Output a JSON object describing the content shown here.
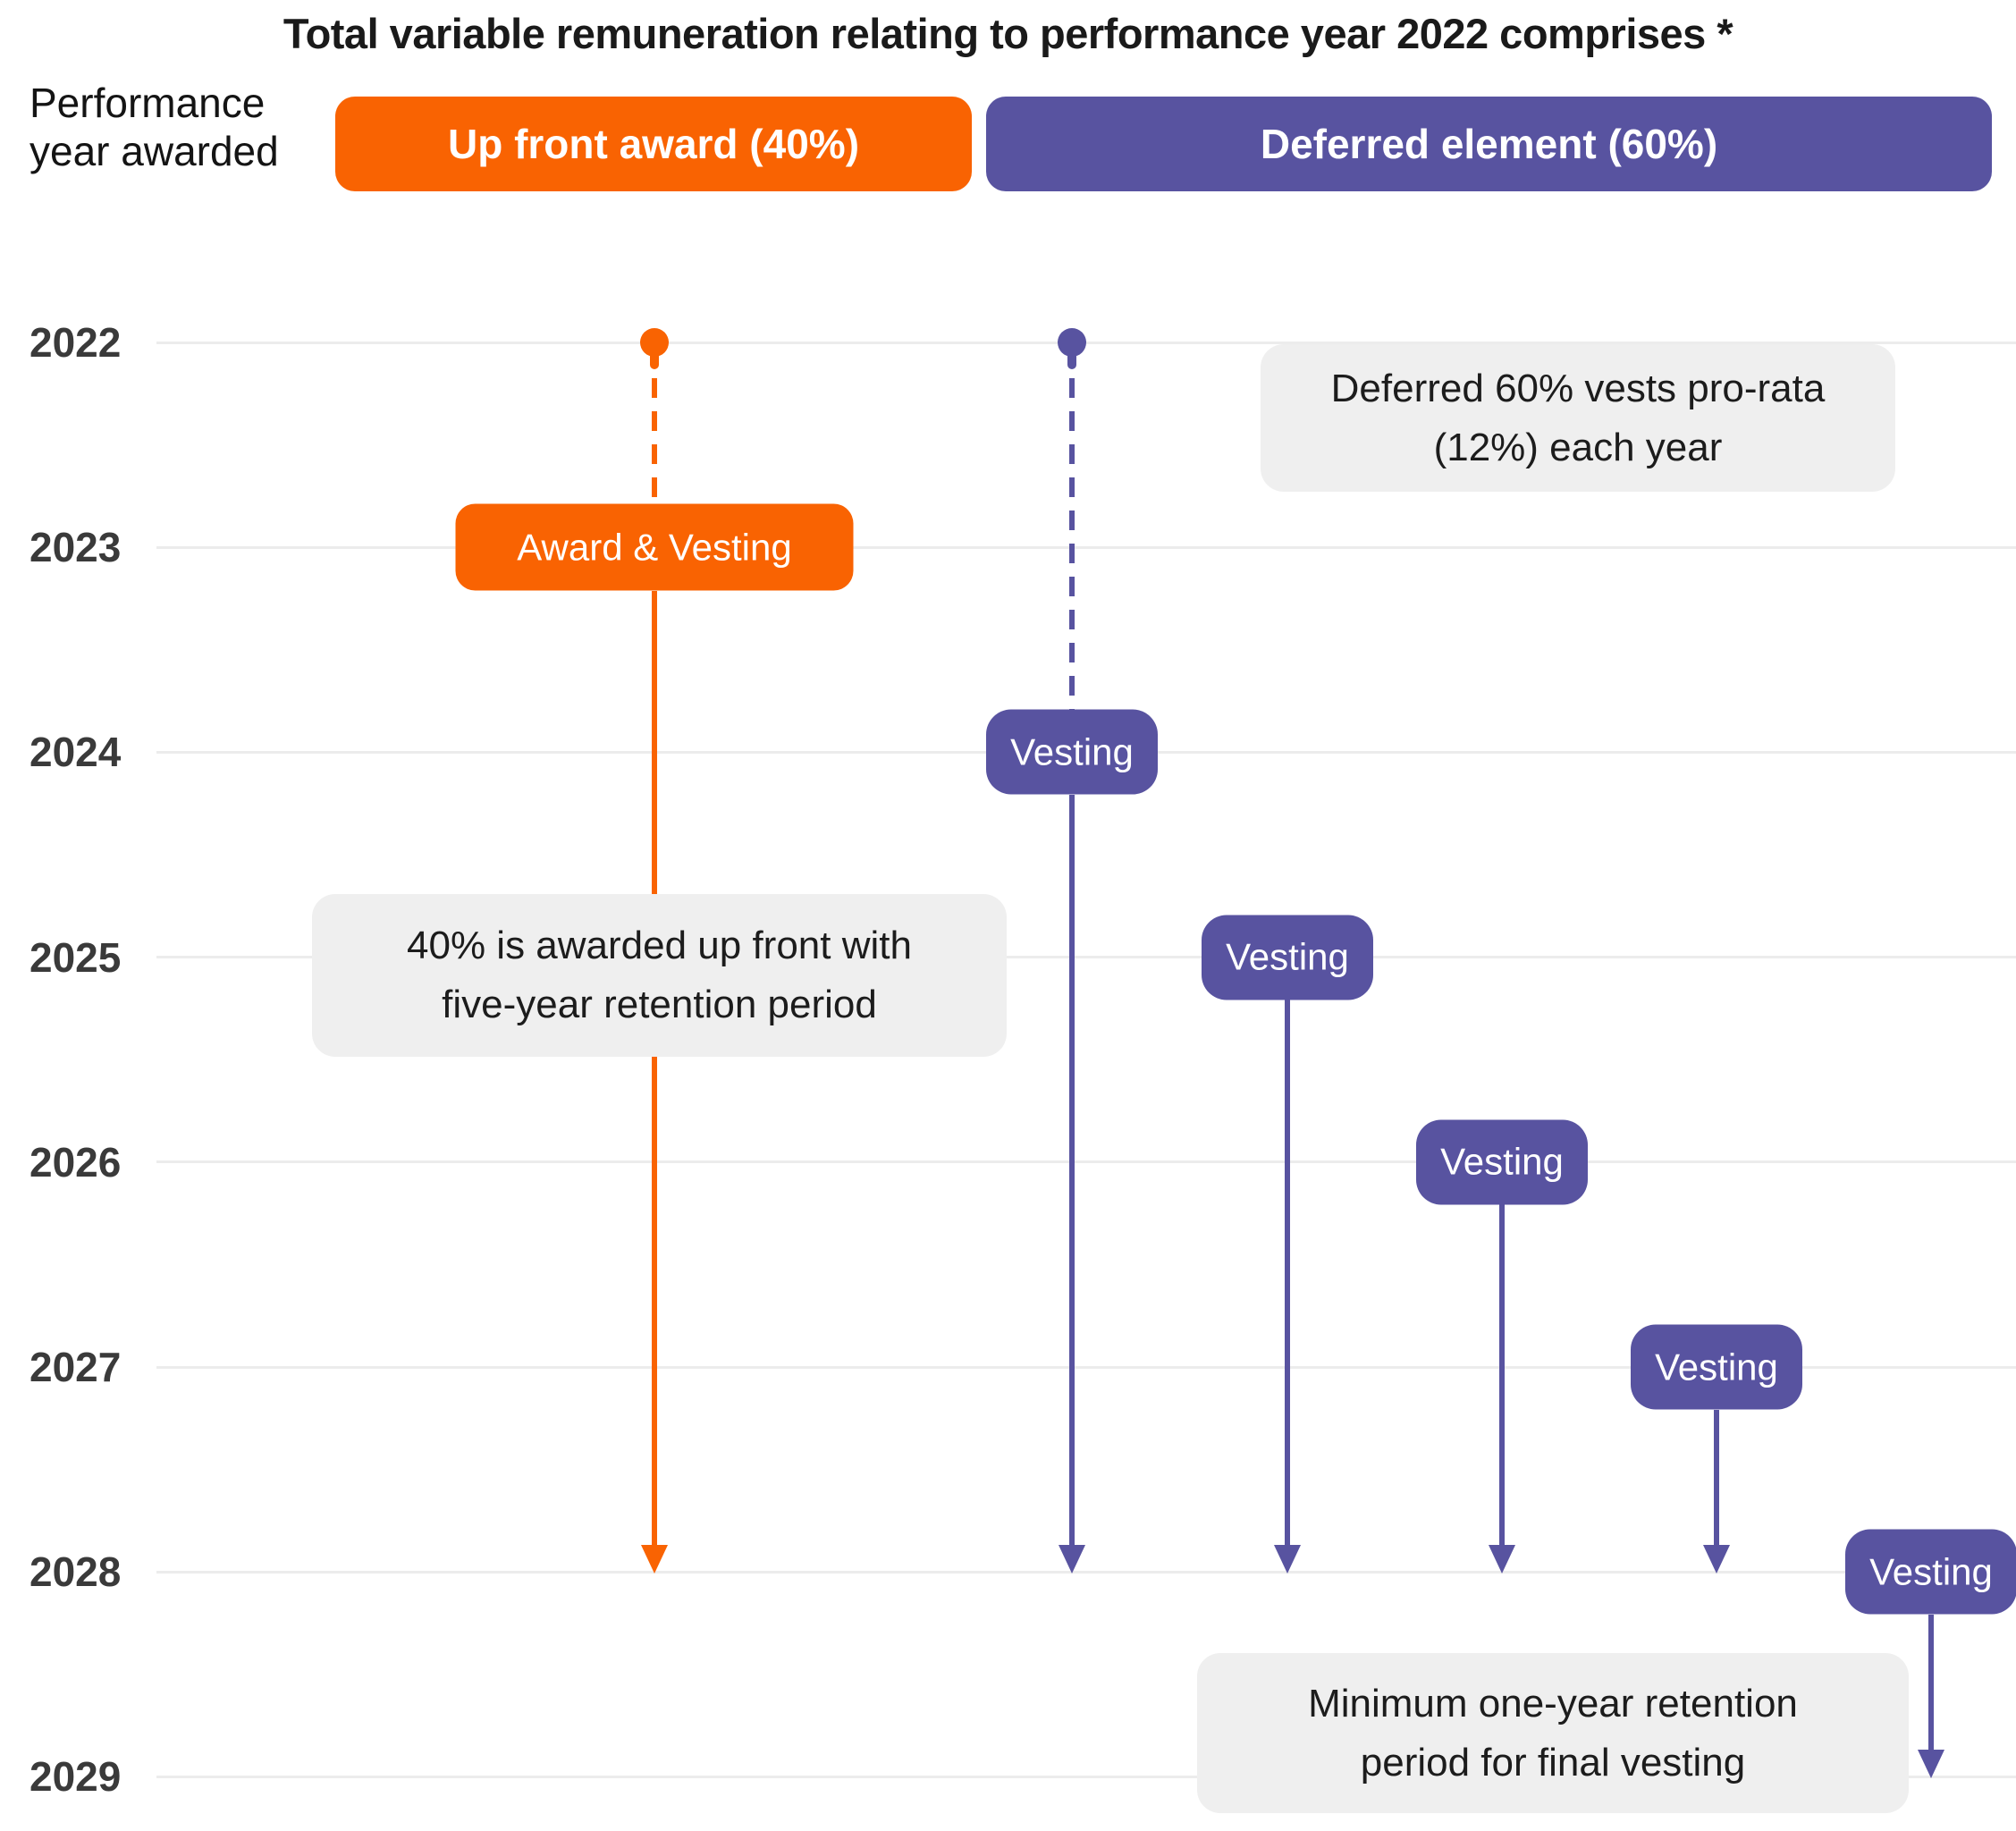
{
  "title": "Total variable remuneration relating to performance year 2022 comprises *",
  "axis_label": {
    "line1": "Performance",
    "line2": "year awarded"
  },
  "headers": {
    "upfront": "Up front award (40%)",
    "deferred": "Deferred element (60%)"
  },
  "colors": {
    "orange": "#F96302",
    "purple": "#5853A0",
    "note_bg": "#EFEFEF",
    "gridline": "#ECECEC",
    "year_label": "#3A3A3A",
    "text": "#1C1C1C",
    "title_text": "#1A1A1A"
  },
  "timeline": {
    "years": [
      2022,
      2023,
      2024,
      2025,
      2026,
      2027,
      2028,
      2029
    ],
    "tracks": [
      {
        "name": "upfront-award",
        "group": "upfront",
        "color_key": "orange",
        "dot_year": 2022,
        "dashed_to_badge": true,
        "badge": {
          "label": "Award & Vesting",
          "year": 2023
        },
        "arrow_year": 2028
      },
      {
        "name": "deferred-tranche-1",
        "group": "deferred",
        "color_key": "purple",
        "dot_year": 2022,
        "dashed_to_badge": true,
        "badge": {
          "label": "Vesting",
          "year": 2024
        },
        "arrow_year": 2028
      },
      {
        "name": "deferred-tranche-2",
        "group": "deferred",
        "color_key": "purple",
        "dot_year": null,
        "dashed_to_badge": false,
        "badge": {
          "label": "Vesting",
          "year": 2025
        },
        "arrow_year": 2028
      },
      {
        "name": "deferred-tranche-3",
        "group": "deferred",
        "color_key": "purple",
        "dot_year": null,
        "dashed_to_badge": false,
        "badge": {
          "label": "Vesting",
          "year": 2026
        },
        "arrow_year": 2028
      },
      {
        "name": "deferred-tranche-4",
        "group": "deferred",
        "color_key": "purple",
        "dot_year": null,
        "dashed_to_badge": false,
        "badge": {
          "label": "Vesting",
          "year": 2027
        },
        "arrow_year": 2028
      },
      {
        "name": "deferred-tranche-5",
        "group": "deferred",
        "color_key": "purple",
        "dot_year": null,
        "dashed_to_badge": false,
        "badge": {
          "label": "Vesting",
          "year": 2028
        },
        "arrow_year": 2029
      }
    ]
  },
  "notes": [
    {
      "name": "deferred-prorata",
      "lines": [
        "Deferred 60% vests pro-rata",
        "(12%) each year"
      ]
    },
    {
      "name": "upfront-retention",
      "lines": [
        "40% is awarded up front with",
        "five-year retention period"
      ]
    },
    {
      "name": "final-vesting-retention",
      "lines": [
        "Minimum one-year retention",
        "period for final vesting"
      ]
    }
  ]
}
